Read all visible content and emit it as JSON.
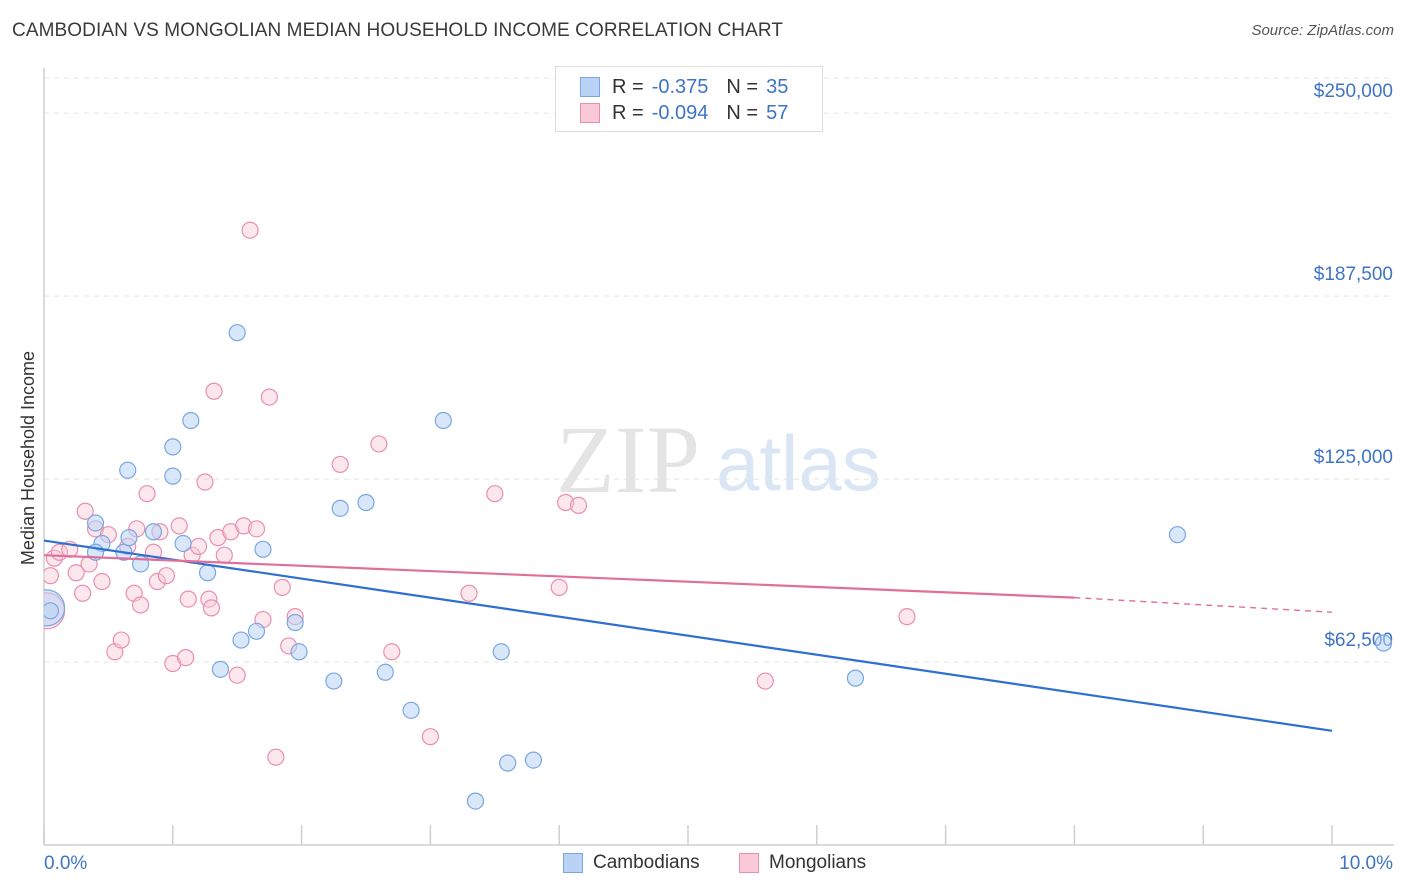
{
  "title": "CAMBODIAN VS MONGOLIAN MEDIAN HOUSEHOLD INCOME CORRELATION CHART",
  "source": "Source: ZipAtlas.com",
  "watermark": {
    "zip": "ZIP",
    "atlas": "atlas"
  },
  "legend": {
    "rows": [
      {
        "r_label": "R =",
        "r_value": "-0.375",
        "n_label": "N =",
        "n_value": "35",
        "color": "#b8d3f5",
        "border": "#7aa7e0"
      },
      {
        "r_label": "R =",
        "r_value": "-0.094",
        "n_label": "N =",
        "n_value": "57",
        "color": "#f9c9d8",
        "border": "#e98fae"
      }
    ]
  },
  "bottom_legend": {
    "cambodians": "Cambodians",
    "mongolians": "Mongolians"
  },
  "colors": {
    "blue_line": "#2f6fd0",
    "pink_line": "#e07099",
    "blue_fill": "#b8d3f5",
    "pink_fill": "#f9c9d8"
  },
  "chart_data": {
    "type": "scatter",
    "title": "CAMBODIAN VS MONGOLIAN MEDIAN HOUSEHOLD INCOME CORRELATION CHART",
    "xlabel": "",
    "ylabel": "Median Household Income",
    "xlim": [
      0,
      10
    ],
    "ylim": [
      0,
      262000
    ],
    "x_tick_labels": [
      "0.0%",
      "10.0%"
    ],
    "y_ticks": [
      62500,
      125000,
      187500,
      250000
    ],
    "y_tick_labels": [
      "$62,500",
      "$125,000",
      "$187,500",
      "$250,000"
    ],
    "grid": true,
    "series": [
      {
        "name": "Cambodians",
        "color": "#b8d3f5",
        "points": [
          [
            0.02,
            81000
          ],
          [
            0.45,
            103000
          ],
          [
            0.4,
            100000
          ],
          [
            0.62,
            100000
          ],
          [
            0.4,
            110000
          ],
          [
            0.66,
            105000
          ],
          [
            0.75,
            96000
          ],
          [
            0.85,
            107000
          ],
          [
            1.0,
            126000
          ],
          [
            1.0,
            136000
          ],
          [
            1.08,
            103000
          ],
          [
            1.14,
            145000
          ],
          [
            1.27,
            93000
          ],
          [
            1.37,
            60000
          ],
          [
            1.5,
            175000
          ],
          [
            1.53,
            70000
          ],
          [
            1.65,
            73000
          ],
          [
            1.7,
            101000
          ],
          [
            1.95,
            76000
          ],
          [
            1.98,
            66000
          ],
          [
            2.25,
            56000
          ],
          [
            2.3,
            115000
          ],
          [
            2.5,
            117000
          ],
          [
            2.65,
            59000
          ],
          [
            2.85,
            46000
          ],
          [
            3.1,
            145000
          ],
          [
            3.35,
            15000
          ],
          [
            3.55,
            66000
          ],
          [
            3.6,
            28000
          ],
          [
            3.8,
            29000
          ],
          [
            0.65,
            128000
          ],
          [
            8.8,
            106000
          ],
          [
            10.4,
            69000
          ],
          [
            6.3,
            57000
          ],
          [
            0.05,
            80000
          ]
        ]
      },
      {
        "name": "Mongolians",
        "color": "#f9c9d8",
        "points": [
          [
            0.02,
            80000
          ],
          [
            0.05,
            92000
          ],
          [
            0.08,
            98000
          ],
          [
            0.12,
            100000
          ],
          [
            0.2,
            101000
          ],
          [
            0.25,
            93000
          ],
          [
            0.3,
            86000
          ],
          [
            0.32,
            114000
          ],
          [
            0.35,
            96000
          ],
          [
            0.4,
            108000
          ],
          [
            0.45,
            90000
          ],
          [
            0.5,
            106000
          ],
          [
            0.55,
            66000
          ],
          [
            0.6,
            70000
          ],
          [
            0.65,
            102000
          ],
          [
            0.7,
            86000
          ],
          [
            0.72,
            108000
          ],
          [
            0.75,
            82000
          ],
          [
            0.8,
            120000
          ],
          [
            0.85,
            100000
          ],
          [
            0.88,
            90000
          ],
          [
            0.9,
            107000
          ],
          [
            0.95,
            92000
          ],
          [
            1.0,
            62000
          ],
          [
            1.05,
            109000
          ],
          [
            1.1,
            64000
          ],
          [
            1.12,
            84000
          ],
          [
            1.15,
            99000
          ],
          [
            1.2,
            102000
          ],
          [
            1.25,
            124000
          ],
          [
            1.28,
            84000
          ],
          [
            1.3,
            81000
          ],
          [
            1.32,
            155000
          ],
          [
            1.35,
            105000
          ],
          [
            1.4,
            99000
          ],
          [
            1.45,
            107000
          ],
          [
            1.5,
            58000
          ],
          [
            1.55,
            109000
          ],
          [
            1.6,
            210000
          ],
          [
            1.65,
            108000
          ],
          [
            1.7,
            77000
          ],
          [
            1.75,
            153000
          ],
          [
            1.8,
            30000
          ],
          [
            1.85,
            88000
          ],
          [
            1.9,
            68000
          ],
          [
            1.95,
            78000
          ],
          [
            2.3,
            130000
          ],
          [
            2.6,
            137000
          ],
          [
            2.7,
            66000
          ],
          [
            3.0,
            37000
          ],
          [
            3.3,
            86000
          ],
          [
            3.5,
            120000
          ],
          [
            4.0,
            88000
          ],
          [
            4.05,
            117000
          ],
          [
            4.15,
            116000
          ],
          [
            5.6,
            56000
          ],
          [
            6.7,
            78000
          ]
        ]
      }
    ],
    "trend_lines": [
      {
        "series": "Cambodians",
        "x": [
          0,
          10
        ],
        "y": [
          104000,
          39000
        ]
      },
      {
        "series": "Mongolians",
        "x": [
          0,
          8
        ],
        "y": [
          99000,
          84500
        ],
        "dashed_to": [
          10,
          79500
        ]
      }
    ]
  }
}
